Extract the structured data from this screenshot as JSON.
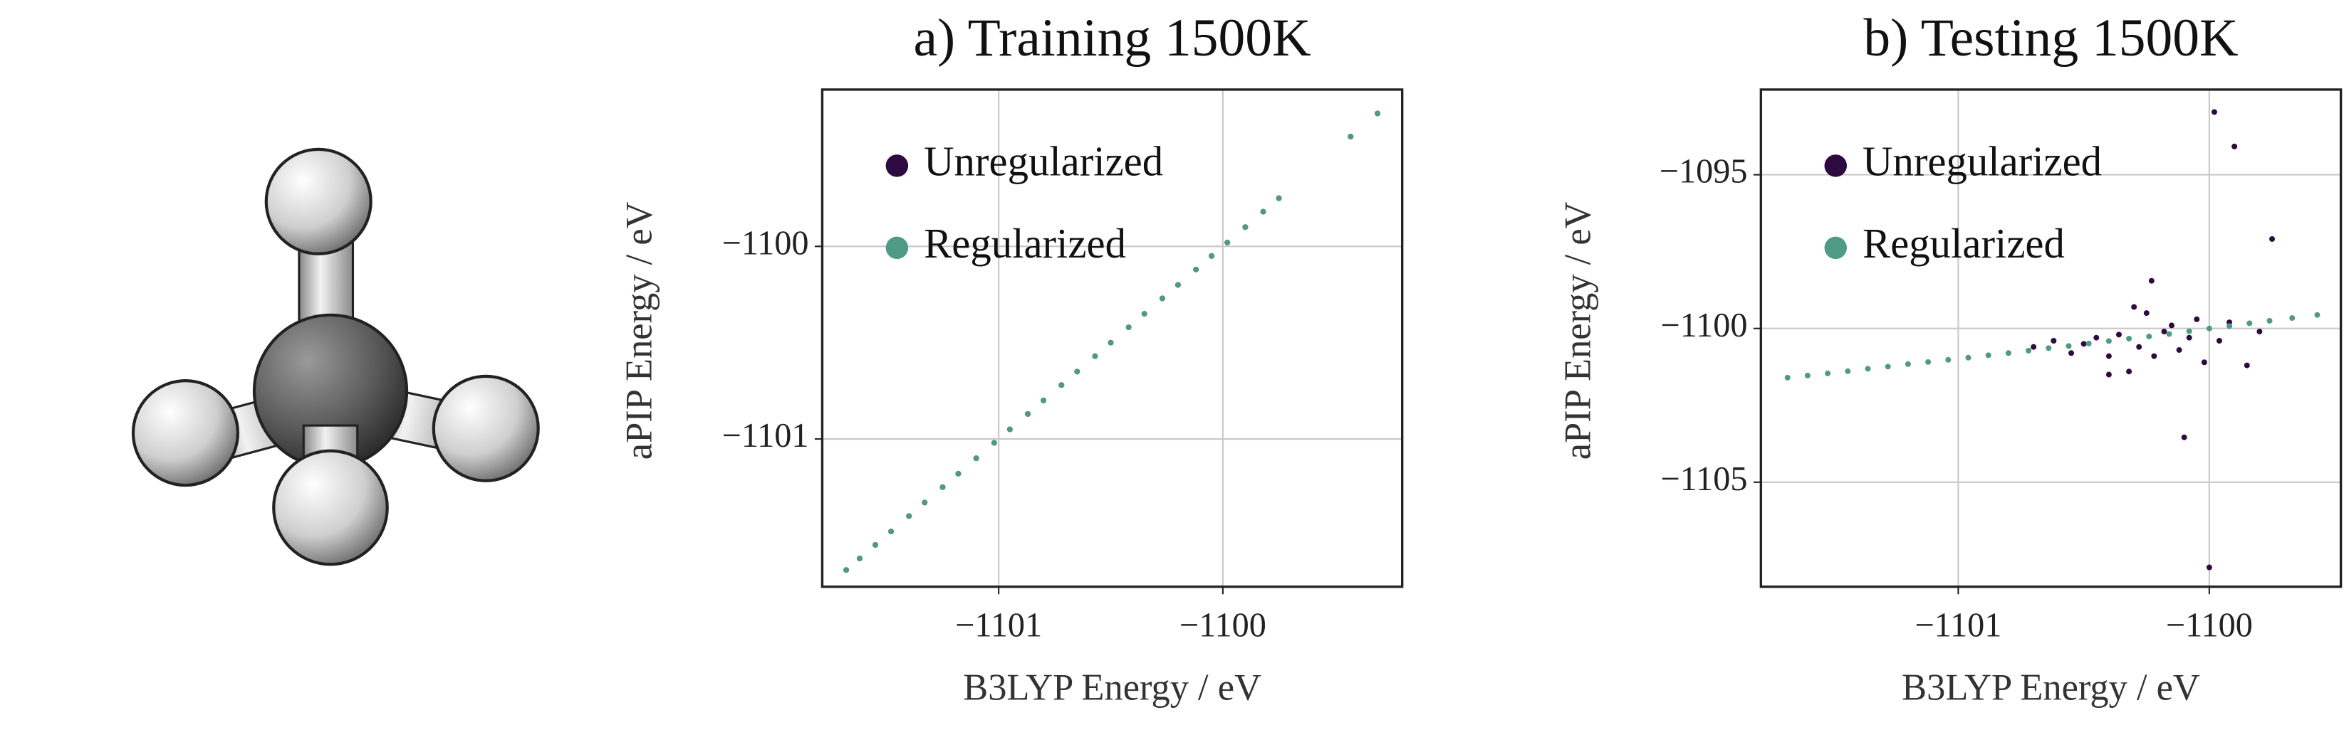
{
  "chart_data": [
    {
      "type": "scatter",
      "title": "a) Training 1500K",
      "x_label": "B3LYP Energy / eV",
      "y_label": "aPIP Energy / eV",
      "xlim": [
        -1101.787,
        -1099.2
      ],
      "ylim": [
        -1101.767,
        -1099.186
      ],
      "xticks": [
        {
          "value": -1101,
          "label": "−1101"
        },
        {
          "value": -1100,
          "label": "−1100"
        }
      ],
      "yticks": [
        {
          "value": -1101,
          "label": "−1101"
        },
        {
          "value": -1100,
          "label": "−1100"
        }
      ],
      "grid": true,
      "legend": "upper left",
      "series": [
        {
          "name": "Unregularized",
          "color": "#2d0a40",
          "x": [
            -1101.68,
            -1101.62,
            -1101.55,
            -1101.48,
            -1101.4,
            -1101.33,
            -1101.25,
            -1101.18,
            -1101.1,
            -1101.02,
            -1100.95,
            -1100.87,
            -1100.8,
            -1100.72,
            -1100.65,
            -1100.57,
            -1100.5,
            -1100.42,
            -1100.35,
            -1100.27,
            -1100.2,
            -1100.12,
            -1100.05,
            -1099.98,
            -1099.9,
            -1099.82,
            -1099.75,
            -1099.43,
            -1099.31
          ],
          "values": [
            -1101.68,
            -1101.62,
            -1101.55,
            -1101.48,
            -1101.4,
            -1101.33,
            -1101.25,
            -1101.18,
            -1101.1,
            -1101.02,
            -1100.95,
            -1100.87,
            -1100.8,
            -1100.72,
            -1100.65,
            -1100.57,
            -1100.5,
            -1100.42,
            -1100.35,
            -1100.27,
            -1100.2,
            -1100.12,
            -1100.05,
            -1099.98,
            -1099.9,
            -1099.82,
            -1099.75,
            -1099.43,
            -1099.31
          ]
        },
        {
          "name": "Regularized",
          "color": "#4f9a85",
          "x": [
            -1101.68,
            -1101.62,
            -1101.55,
            -1101.48,
            -1101.4,
            -1101.33,
            -1101.25,
            -1101.18,
            -1101.1,
            -1101.02,
            -1100.95,
            -1100.87,
            -1100.8,
            -1100.72,
            -1100.65,
            -1100.57,
            -1100.5,
            -1100.42,
            -1100.35,
            -1100.27,
            -1100.2,
            -1100.12,
            -1100.05,
            -1099.98,
            -1099.9,
            -1099.82,
            -1099.75,
            -1099.43,
            -1099.31
          ],
          "values": [
            -1101.68,
            -1101.62,
            -1101.55,
            -1101.48,
            -1101.4,
            -1101.33,
            -1101.25,
            -1101.18,
            -1101.1,
            -1101.02,
            -1100.95,
            -1100.87,
            -1100.8,
            -1100.72,
            -1100.65,
            -1100.57,
            -1100.5,
            -1100.42,
            -1100.35,
            -1100.27,
            -1100.2,
            -1100.12,
            -1100.05,
            -1099.98,
            -1099.9,
            -1099.82,
            -1099.75,
            -1099.43,
            -1099.31
          ]
        }
      ]
    },
    {
      "type": "scatter",
      "title": "b) Testing 1500K",
      "x_label": "B3LYP Energy / eV",
      "y_label": "aPIP Energy / eV",
      "xlim": [
        -1101.786,
        -1099.476
      ],
      "ylim": [
        -1108.4,
        -1092.23
      ],
      "xticks": [
        {
          "value": -1101,
          "label": "−1101"
        },
        {
          "value": -1100,
          "label": "−1100"
        }
      ],
      "yticks": [
        {
          "value": -1105,
          "label": "−1105"
        },
        {
          "value": -1100,
          "label": "−1100"
        },
        {
          "value": -1095,
          "label": "−1095"
        }
      ],
      "grid": true,
      "legend": "upper left",
      "series": [
        {
          "name": "Unregularized",
          "color": "#2d0a40",
          "x": [
            -1100.7,
            -1100.62,
            -1100.55,
            -1100.5,
            -1100.45,
            -1100.4,
            -1100.36,
            -1100.32,
            -1100.28,
            -1100.25,
            -1100.22,
            -1100.18,
            -1100.15,
            -1100.12,
            -1100.08,
            -1100.05,
            -1100.02,
            -1099.96,
            -1099.92,
            -1099.85,
            -1099.8,
            -1100.23,
            -1100.1,
            -1099.98,
            -1099.9,
            -1099.75,
            -1100.0,
            -1100.4,
            -1100.3
          ],
          "values": [
            -1100.6,
            -1100.4,
            -1100.8,
            -1100.5,
            -1100.3,
            -1100.9,
            -1100.2,
            -1101.4,
            -1100.6,
            -1099.5,
            -1100.9,
            -1100.1,
            -1099.9,
            -1100.7,
            -1100.3,
            -1099.7,
            -1101.1,
            -1100.4,
            -1099.8,
            -1101.2,
            -1100.1,
            -1098.45,
            -1103.54,
            -1092.96,
            -1094.08,
            -1097.09,
            -1107.77,
            -1101.5,
            -1099.3
          ]
        },
        {
          "name": "Regularized",
          "color": "#4f9a85",
          "x": [
            -1101.68,
            -1101.6,
            -1101.52,
            -1101.44,
            -1101.36,
            -1101.28,
            -1101.2,
            -1101.12,
            -1101.04,
            -1100.96,
            -1100.88,
            -1100.8,
            -1100.72,
            -1100.64,
            -1100.56,
            -1100.48,
            -1100.4,
            -1100.32,
            -1100.24,
            -1100.16,
            -1100.08,
            -1100.0,
            -1099.92,
            -1099.84,
            -1099.76,
            -1099.67,
            -1099.57
          ],
          "values": [
            -1101.6,
            -1101.53,
            -1101.46,
            -1101.39,
            -1101.31,
            -1101.24,
            -1101.16,
            -1101.09,
            -1101.02,
            -1100.95,
            -1100.87,
            -1100.8,
            -1100.72,
            -1100.64,
            -1100.57,
            -1100.49,
            -1100.41,
            -1100.33,
            -1100.26,
            -1100.18,
            -1100.09,
            -1100.0,
            -1099.92,
            -1099.83,
            -1099.75,
            -1099.66,
            -1099.56
          ]
        }
      ]
    }
  ]
}
